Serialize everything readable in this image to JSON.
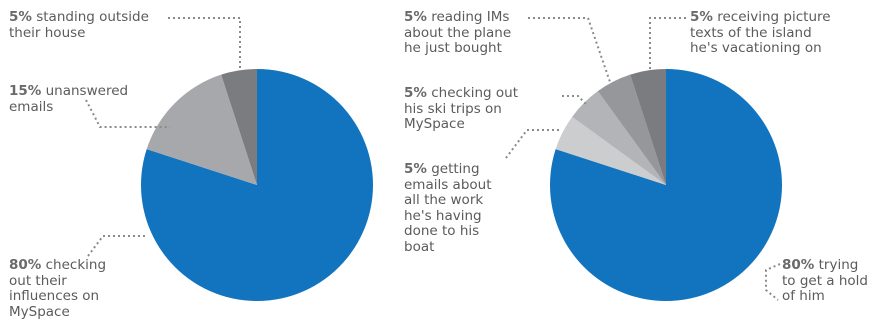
{
  "chart_data": [
    {
      "type": "pie",
      "slices": [
        {
          "value": 80,
          "color": "#1274bf",
          "label_pct": "80%",
          "label_lines": [
            " checking",
            "out their",
            "influences on",
            "MySpace"
          ]
        },
        {
          "value": 15,
          "color": "#a7a8ac",
          "label_pct": "15%",
          "label_lines": [
            " unanswered",
            "emails"
          ]
        },
        {
          "value": 5,
          "color": "#7b7c80",
          "label_pct": "5%",
          "label_lines": [
            " standing outside",
            "their house"
          ]
        }
      ]
    },
    {
      "type": "pie",
      "slices": [
        {
          "value": 80,
          "color": "#1274bf",
          "label_pct": "80%",
          "label_lines": [
            " trying",
            "to get a hold",
            "of him"
          ]
        },
        {
          "value": 5,
          "color": "#cccdcf",
          "label_pct": "5%",
          "label_lines": [
            " getting",
            "emails about",
            "all the work",
            "he's having",
            "done to his",
            "boat"
          ]
        },
        {
          "value": 5,
          "color": "#b3b4b7",
          "label_pct": "5%",
          "label_lines": [
            " checking out",
            "his ski trips on",
            "MySpace"
          ]
        },
        {
          "value": 5,
          "color": "#96979a",
          "label_pct": "5%",
          "label_lines": [
            " reading IMs",
            "about the plane",
            "he just bought"
          ]
        },
        {
          "value": 5,
          "color": "#7b7c80",
          "label_pct": "5%",
          "label_lines": [
            " receiving picture",
            "texts of the island",
            "he's vacationing on"
          ]
        }
      ]
    }
  ]
}
